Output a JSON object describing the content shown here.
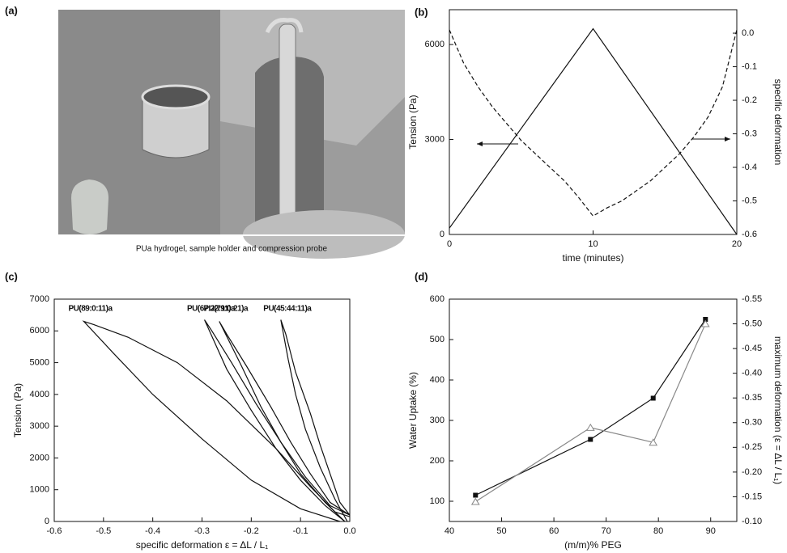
{
  "photo": {
    "label": "(a)",
    "caption": "PUa hydrogel, sample holder and compression probe"
  },
  "chart_data": [
    {
      "type": "line",
      "label": "(b)",
      "x_label": "time (minutes)",
      "y_label": "Tension (Pa)",
      "y2_label": "specific deformation",
      "xlim": [
        0,
        20
      ],
      "xticks": [
        0,
        10,
        20
      ],
      "ylim": [
        0,
        7100
      ],
      "yticks": [
        0,
        3000,
        6000
      ],
      "y2lim": [
        -0.6,
        0.07
      ],
      "y2ticks": [
        {
          "value": 0,
          "label": "0.0"
        },
        -0.1,
        -0.2,
        -0.3,
        -0.4,
        -0.5,
        -0.6
      ],
      "series": [
        {
          "color": "#111111",
          "style": "solid",
          "x": [
            0,
            10,
            20
          ],
          "values": [
            200,
            6500,
            0
          ]
        },
        {
          "color": "#111111",
          "style": "dashed",
          "axis": "y2",
          "x": [
            0,
            1,
            2,
            3,
            4,
            5,
            6,
            7,
            8,
            9,
            10,
            11,
            12,
            13,
            14,
            15,
            16,
            17,
            18,
            19,
            20
          ],
          "values": [
            0.01,
            -0.09,
            -0.16,
            -0.22,
            -0.27,
            -0.32,
            -0.36,
            -0.4,
            -0.44,
            -0.49,
            -0.545,
            -0.52,
            -0.5,
            -0.47,
            -0.44,
            -0.4,
            -0.36,
            -0.31,
            -0.25,
            -0.16,
            0.01
          ]
        }
      ]
    },
    {
      "type": "line",
      "label": "(c)",
      "x_label": "specific deformation   ε = ΔL / L₁",
      "y_label": "Tension (Pa)",
      "xlim": [
        -0.6,
        0
      ],
      "xticks": [
        -0.6,
        -0.5,
        -0.4,
        -0.3,
        -0.2,
        -0.1,
        {
          "value": 0,
          "label": "0.0"
        }
      ],
      "ylim": [
        0,
        7000
      ],
      "yticks": [
        0,
        1000,
        2000,
        3000,
        4000,
        5000,
        6000,
        7000
      ],
      "series": [
        {
          "name": "PU(89:0:11)a",
          "color": "#111111",
          "style": "solid",
          "x": [
            -0.02,
            -0.1,
            -0.2,
            -0.3,
            -0.4,
            -0.48,
            -0.54,
            -0.52,
            -0.45,
            -0.35,
            -0.25,
            -0.15,
            -0.08,
            -0.03,
            0
          ],
          "values": [
            0,
            400,
            1300,
            2600,
            4000,
            5300,
            6300,
            6200,
            5800,
            5000,
            3800,
            2300,
            1100,
            300,
            150
          ]
        },
        {
          "name": "PU(67:22:11)a",
          "color": "#111111",
          "style": "solid",
          "x": [
            -0.01,
            -0.05,
            -0.1,
            -0.15,
            -0.2,
            -0.25,
            -0.295,
            -0.28,
            -0.24,
            -0.19,
            -0.14,
            -0.09,
            -0.04,
            0
          ],
          "values": [
            0,
            500,
            1300,
            2300,
            3500,
            4800,
            6350,
            6000,
            5000,
            3700,
            2500,
            1400,
            500,
            200
          ]
        },
        {
          "name": "PU(79:0:21)a",
          "color": "#111111",
          "style": "solid",
          "x": [
            -0.01,
            -0.05,
            -0.1,
            -0.14,
            -0.18,
            -0.22,
            -0.265,
            -0.25,
            -0.21,
            -0.16,
            -0.12,
            -0.08,
            -0.04,
            0
          ],
          "values": [
            0,
            600,
            1500,
            2500,
            3600,
            4900,
            6300,
            5900,
            4900,
            3600,
            2500,
            1500,
            600,
            200
          ]
        },
        {
          "name": "PU(45:44:11)a",
          "color": "#111111",
          "style": "solid",
          "x": [
            -0.005,
            -0.03,
            -0.06,
            -0.09,
            -0.11,
            -0.125,
            -0.14,
            -0.13,
            -0.11,
            -0.08,
            -0.06,
            -0.04,
            -0.02,
            0
          ],
          "values": [
            0,
            700,
            1700,
            2900,
            4000,
            5100,
            6350,
            5900,
            4700,
            3400,
            2400,
            1500,
            600,
            200
          ]
        }
      ]
    },
    {
      "type": "line",
      "label": "(d)",
      "x_label": "(m/m)% PEG",
      "y_label": "Water Uptake (%)",
      "y2_label": "maximum deformation (ε = ΔL / L₁)",
      "xlim": [
        40,
        95
      ],
      "xticks": [
        40,
        50,
        60,
        70,
        80,
        90
      ],
      "ylim": [
        50,
        600
      ],
      "yticks": [
        100,
        200,
        300,
        400,
        500,
        600
      ],
      "y2lim": [
        -0.1,
        -0.55
      ],
      "y2ticks": [
        {
          "value": -0.1,
          "label": "-0.10"
        },
        -0.15,
        {
          "value": -0.2,
          "label": "-0.20"
        },
        -0.25,
        {
          "value": -0.3,
          "label": "-0.30"
        },
        -0.35,
        {
          "value": -0.4,
          "label": "-0.40"
        },
        -0.45,
        {
          "value": -0.5,
          "label": "-0.50"
        },
        -0.55
      ],
      "series": [
        {
          "color": "#111111",
          "style": "solid",
          "marker": "square",
          "x": [
            45,
            67,
            79,
            89
          ],
          "values": [
            115,
            253,
            355,
            550
          ]
        },
        {
          "color": "#888888",
          "style": "solid",
          "marker": "triangle",
          "axis": "y2",
          "x": [
            45,
            67,
            79,
            89
          ],
          "values": [
            -0.14,
            -0.29,
            -0.26,
            -0.5
          ]
        }
      ]
    }
  ]
}
